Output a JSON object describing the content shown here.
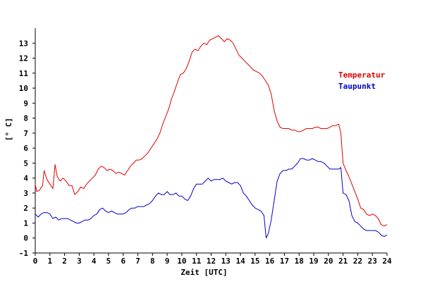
{
  "chart_data": {
    "type": "line",
    "xlabel": "Zeit [UTC]",
    "ylabel": "[° C]",
    "xlim": [
      0,
      24
    ],
    "ylim": [
      -1,
      14
    ],
    "x_ticks": [
      0,
      1,
      2,
      3,
      4,
      5,
      6,
      7,
      8,
      9,
      10,
      11,
      12,
      13,
      14,
      15,
      16,
      17,
      18,
      19,
      20,
      21,
      22,
      23,
      24
    ],
    "y_ticks": [
      -1,
      0,
      1,
      2,
      3,
      4,
      5,
      6,
      7,
      8,
      9,
      10,
      11,
      12,
      13
    ],
    "grid": false,
    "legend_position": "right",
    "series": [
      {
        "name": "Temperatur",
        "color": "#e00000",
        "points": [
          [
            0,
            3.6
          ],
          [
            0.1,
            3.1
          ],
          [
            0.3,
            3.2
          ],
          [
            0.5,
            3.5
          ],
          [
            0.6,
            4.5
          ],
          [
            0.8,
            3.9
          ],
          [
            1.0,
            3.6
          ],
          [
            1.2,
            3.3
          ],
          [
            1.35,
            4.9
          ],
          [
            1.5,
            4.1
          ],
          [
            1.7,
            3.8
          ],
          [
            1.9,
            4.0
          ],
          [
            2.1,
            3.8
          ],
          [
            2.3,
            3.5
          ],
          [
            2.5,
            3.5
          ],
          [
            2.7,
            2.9
          ],
          [
            2.9,
            3.1
          ],
          [
            3.1,
            3.4
          ],
          [
            3.3,
            3.3
          ],
          [
            3.5,
            3.6
          ],
          [
            3.7,
            3.8
          ],
          [
            3.9,
            4.0
          ],
          [
            4.1,
            4.2
          ],
          [
            4.3,
            4.6
          ],
          [
            4.5,
            4.8
          ],
          [
            4.7,
            4.7
          ],
          [
            4.9,
            4.5
          ],
          [
            5.1,
            4.6
          ],
          [
            5.3,
            4.5
          ],
          [
            5.5,
            4.3
          ],
          [
            5.7,
            4.4
          ],
          [
            5.9,
            4.3
          ],
          [
            6.1,
            4.2
          ],
          [
            6.3,
            4.5
          ],
          [
            6.5,
            4.8
          ],
          [
            6.7,
            5.0
          ],
          [
            6.9,
            5.2
          ],
          [
            7.1,
            5.2
          ],
          [
            7.3,
            5.3
          ],
          [
            7.5,
            5.5
          ],
          [
            7.7,
            5.7
          ],
          [
            7.9,
            6.0
          ],
          [
            8.1,
            6.3
          ],
          [
            8.3,
            6.6
          ],
          [
            8.5,
            7.0
          ],
          [
            8.7,
            7.6
          ],
          [
            8.9,
            8.1
          ],
          [
            9.1,
            8.6
          ],
          [
            9.3,
            9.3
          ],
          [
            9.5,
            9.8
          ],
          [
            9.7,
            10.4
          ],
          [
            9.9,
            10.9
          ],
          [
            10.1,
            11.0
          ],
          [
            10.3,
            11.3
          ],
          [
            10.5,
            11.8
          ],
          [
            10.7,
            12.4
          ],
          [
            10.9,
            12.6
          ],
          [
            11.1,
            12.5
          ],
          [
            11.3,
            12.8
          ],
          [
            11.5,
            13.0
          ],
          [
            11.7,
            12.9
          ],
          [
            11.9,
            13.2
          ],
          [
            12.1,
            13.3
          ],
          [
            12.3,
            13.4
          ],
          [
            12.5,
            13.5
          ],
          [
            12.7,
            13.3
          ],
          [
            12.9,
            13.1
          ],
          [
            13.1,
            13.3
          ],
          [
            13.3,
            13.2
          ],
          [
            13.5,
            13.0
          ],
          [
            13.7,
            12.6
          ],
          [
            13.9,
            12.2
          ],
          [
            14.1,
            12.0
          ],
          [
            14.3,
            11.8
          ],
          [
            14.5,
            11.6
          ],
          [
            14.7,
            11.4
          ],
          [
            14.9,
            11.2
          ],
          [
            15.1,
            11.1
          ],
          [
            15.3,
            11.0
          ],
          [
            15.5,
            10.8
          ],
          [
            15.7,
            10.5
          ],
          [
            15.9,
            10.2
          ],
          [
            16.1,
            9.6
          ],
          [
            16.3,
            8.5
          ],
          [
            16.5,
            7.8
          ],
          [
            16.7,
            7.4
          ],
          [
            16.9,
            7.3
          ],
          [
            17.1,
            7.3
          ],
          [
            17.3,
            7.3
          ],
          [
            17.5,
            7.2
          ],
          [
            17.7,
            7.2
          ],
          [
            17.9,
            7.1
          ],
          [
            18.1,
            7.1
          ],
          [
            18.3,
            7.2
          ],
          [
            18.5,
            7.3
          ],
          [
            18.7,
            7.3
          ],
          [
            18.9,
            7.3
          ],
          [
            19.1,
            7.4
          ],
          [
            19.3,
            7.4
          ],
          [
            19.5,
            7.3
          ],
          [
            19.7,
            7.3
          ],
          [
            19.9,
            7.3
          ],
          [
            20.1,
            7.4
          ],
          [
            20.3,
            7.5
          ],
          [
            20.5,
            7.5
          ],
          [
            20.7,
            7.6
          ],
          [
            20.85,
            7.0
          ],
          [
            21.0,
            5.0
          ],
          [
            21.2,
            4.5
          ],
          [
            21.4,
            4.1
          ],
          [
            21.6,
            3.6
          ],
          [
            21.8,
            3.1
          ],
          [
            22.0,
            2.6
          ],
          [
            22.2,
            2.0
          ],
          [
            22.4,
            1.9
          ],
          [
            22.6,
            1.6
          ],
          [
            22.8,
            1.5
          ],
          [
            23.0,
            1.6
          ],
          [
            23.2,
            1.5
          ],
          [
            23.4,
            1.3
          ],
          [
            23.6,
            0.9
          ],
          [
            23.8,
            0.8
          ],
          [
            24.0,
            0.9
          ]
        ]
      },
      {
        "name": "Taupunkt",
        "color": "#0000c8",
        "points": [
          [
            0,
            1.6
          ],
          [
            0.2,
            1.4
          ],
          [
            0.4,
            1.6
          ],
          [
            0.6,
            1.7
          ],
          [
            0.8,
            1.7
          ],
          [
            1.0,
            1.6
          ],
          [
            1.2,
            1.3
          ],
          [
            1.4,
            1.4
          ],
          [
            1.6,
            1.2
          ],
          [
            1.8,
            1.3
          ],
          [
            2.0,
            1.3
          ],
          [
            2.2,
            1.3
          ],
          [
            2.4,
            1.2
          ],
          [
            2.6,
            1.1
          ],
          [
            2.8,
            1.0
          ],
          [
            3.0,
            1.0
          ],
          [
            3.2,
            1.1
          ],
          [
            3.4,
            1.2
          ],
          [
            3.6,
            1.2
          ],
          [
            3.8,
            1.3
          ],
          [
            4.0,
            1.5
          ],
          [
            4.2,
            1.6
          ],
          [
            4.4,
            1.9
          ],
          [
            4.6,
            2.0
          ],
          [
            4.8,
            1.8
          ],
          [
            5.0,
            1.7
          ],
          [
            5.2,
            1.8
          ],
          [
            5.4,
            1.7
          ],
          [
            5.6,
            1.6
          ],
          [
            5.8,
            1.6
          ],
          [
            6.0,
            1.6
          ],
          [
            6.2,
            1.7
          ],
          [
            6.4,
            1.9
          ],
          [
            6.6,
            2.0
          ],
          [
            6.8,
            2.0
          ],
          [
            7.0,
            2.1
          ],
          [
            7.2,
            2.1
          ],
          [
            7.4,
            2.1
          ],
          [
            7.6,
            2.2
          ],
          [
            7.8,
            2.3
          ],
          [
            8.0,
            2.5
          ],
          [
            8.2,
            2.8
          ],
          [
            8.4,
            3.0
          ],
          [
            8.6,
            2.9
          ],
          [
            8.8,
            2.9
          ],
          [
            9.0,
            3.1
          ],
          [
            9.2,
            2.9
          ],
          [
            9.4,
            2.9
          ],
          [
            9.6,
            3.0
          ],
          [
            9.8,
            2.8
          ],
          [
            10.0,
            2.8
          ],
          [
            10.2,
            2.6
          ],
          [
            10.4,
            2.5
          ],
          [
            10.6,
            2.8
          ],
          [
            10.8,
            3.3
          ],
          [
            11.0,
            3.6
          ],
          [
            11.2,
            3.6
          ],
          [
            11.4,
            3.6
          ],
          [
            11.6,
            3.8
          ],
          [
            11.8,
            4.0
          ],
          [
            12.0,
            3.8
          ],
          [
            12.2,
            3.9
          ],
          [
            12.4,
            3.9
          ],
          [
            12.6,
            3.9
          ],
          [
            12.8,
            4.0
          ],
          [
            13.0,
            3.8
          ],
          [
            13.2,
            3.7
          ],
          [
            13.4,
            3.6
          ],
          [
            13.6,
            3.7
          ],
          [
            13.8,
            3.7
          ],
          [
            14.0,
            3.5
          ],
          [
            14.2,
            3.0
          ],
          [
            14.4,
            2.8
          ],
          [
            14.6,
            2.5
          ],
          [
            14.8,
            2.2
          ],
          [
            15.0,
            2.0
          ],
          [
            15.2,
            1.9
          ],
          [
            15.4,
            1.8
          ],
          [
            15.6,
            1.5
          ],
          [
            15.75,
            0.0
          ],
          [
            15.9,
            0.3
          ],
          [
            16.1,
            1.2
          ],
          [
            16.3,
            2.5
          ],
          [
            16.5,
            3.8
          ],
          [
            16.7,
            4.3
          ],
          [
            16.9,
            4.5
          ],
          [
            17.1,
            4.5
          ],
          [
            17.3,
            4.6
          ],
          [
            17.5,
            4.6
          ],
          [
            17.7,
            4.8
          ],
          [
            17.9,
            5.0
          ],
          [
            18.1,
            5.3
          ],
          [
            18.3,
            5.3
          ],
          [
            18.5,
            5.2
          ],
          [
            18.7,
            5.2
          ],
          [
            18.9,
            5.3
          ],
          [
            19.1,
            5.2
          ],
          [
            19.3,
            5.1
          ],
          [
            19.5,
            5.1
          ],
          [
            19.7,
            5.0
          ],
          [
            19.9,
            4.8
          ],
          [
            20.1,
            4.6
          ],
          [
            20.3,
            4.6
          ],
          [
            20.5,
            4.6
          ],
          [
            20.7,
            4.6
          ],
          [
            20.85,
            4.7
          ],
          [
            21.0,
            3.0
          ],
          [
            21.2,
            2.9
          ],
          [
            21.4,
            2.5
          ],
          [
            21.6,
            1.5
          ],
          [
            21.8,
            1.1
          ],
          [
            22.0,
            1.0
          ],
          [
            22.2,
            0.8
          ],
          [
            22.4,
            0.6
          ],
          [
            22.6,
            0.5
          ],
          [
            22.8,
            0.5
          ],
          [
            23.0,
            0.5
          ],
          [
            23.2,
            0.5
          ],
          [
            23.4,
            0.4
          ],
          [
            23.6,
            0.2
          ],
          [
            23.8,
            0.1
          ],
          [
            24.0,
            0.2
          ]
        ]
      }
    ]
  }
}
